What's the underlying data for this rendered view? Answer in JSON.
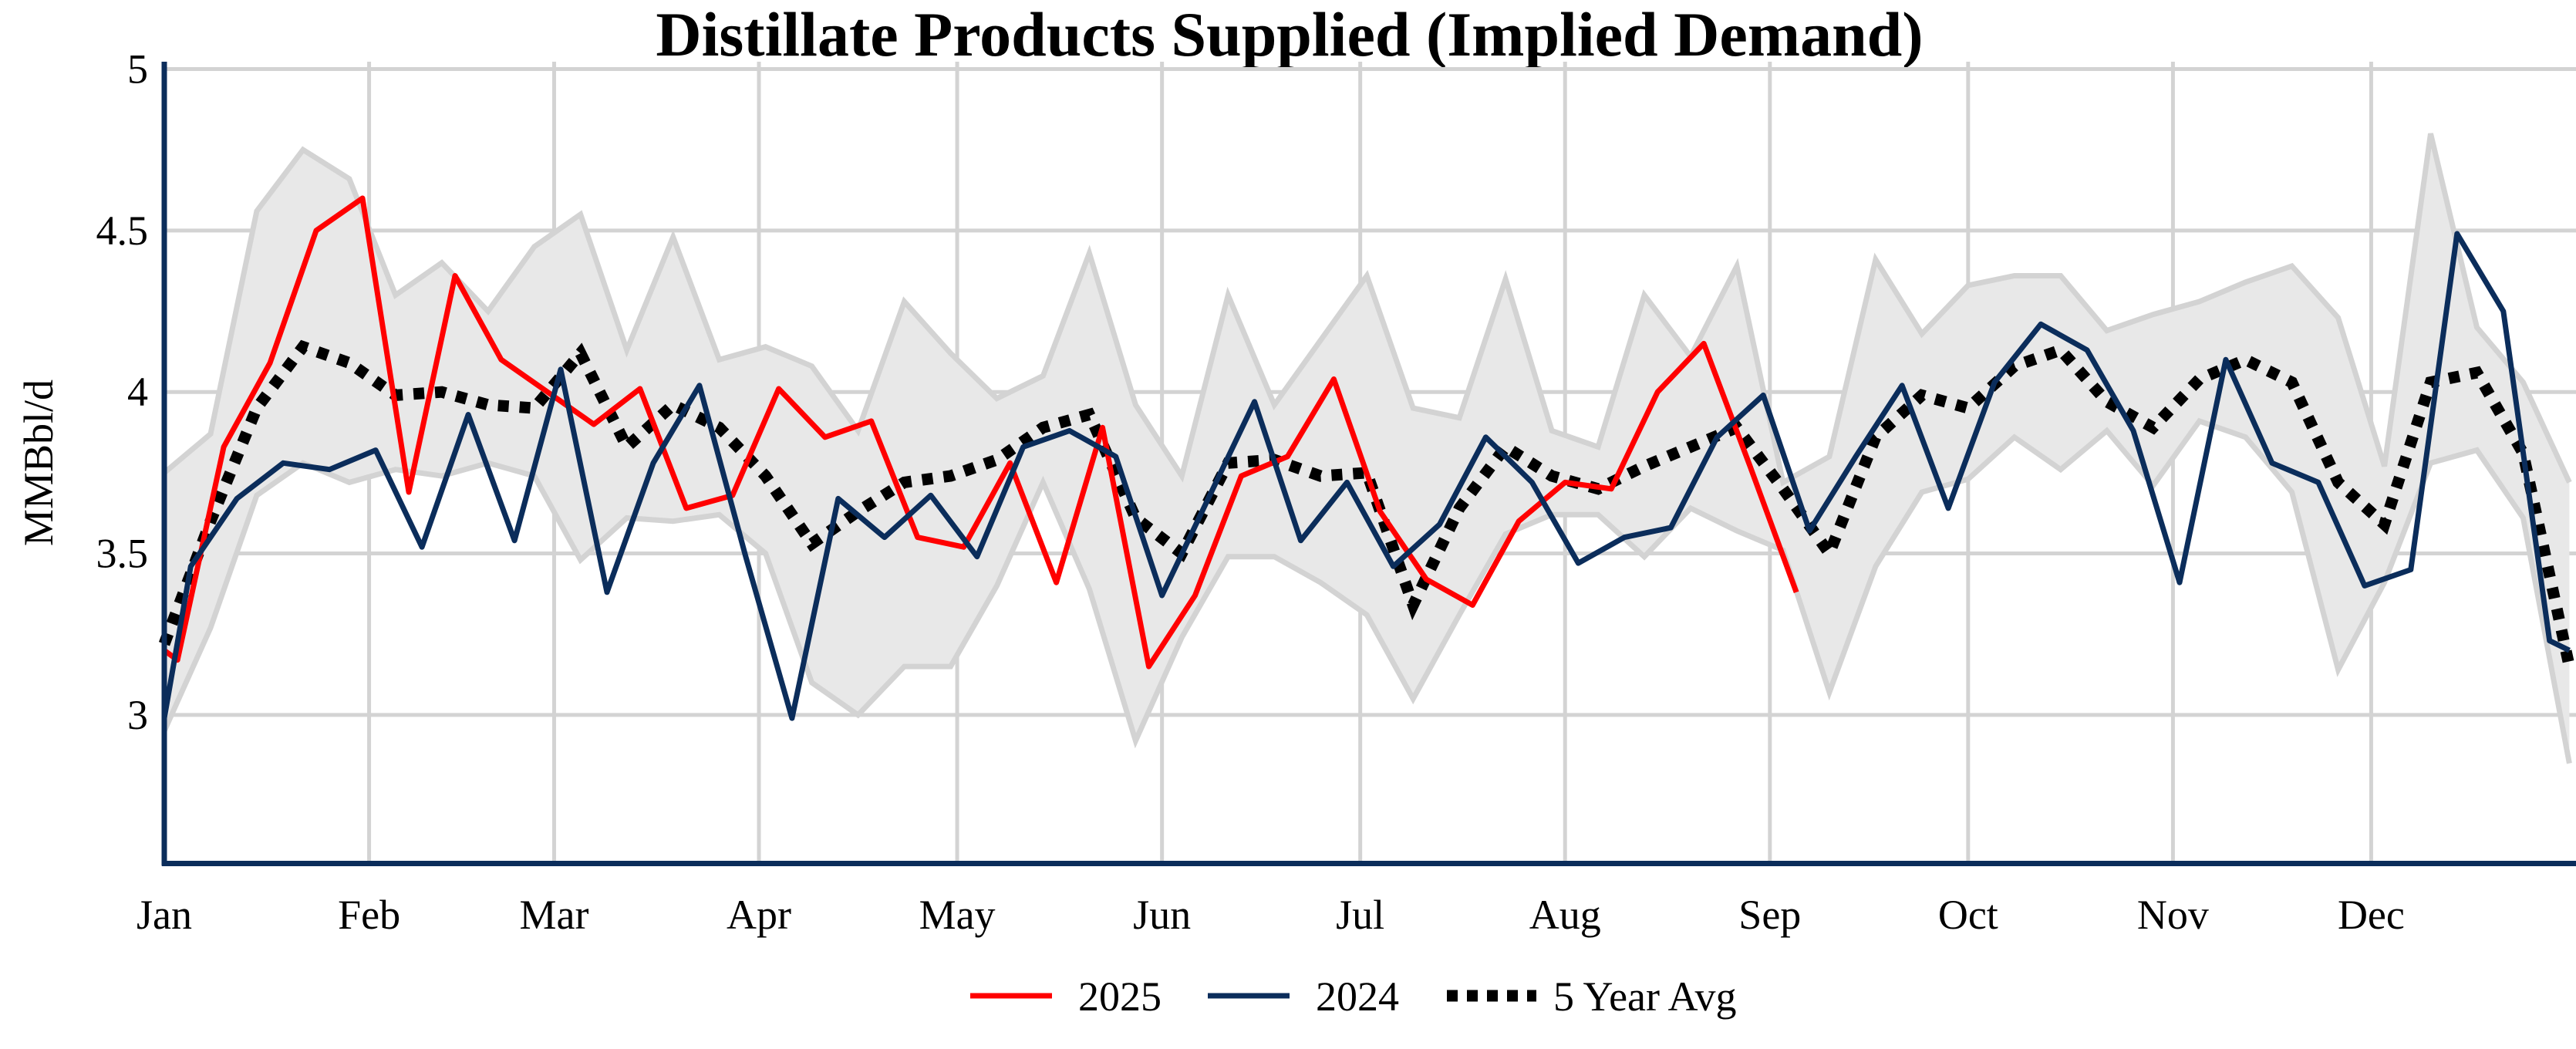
{
  "chart_data": {
    "type": "line",
    "title": "Distillate Products Supplied (Implied Demand)",
    "xlabel": "",
    "ylabel": "MMBbl/d",
    "x_tick_labels": [
      "Jan",
      "Feb",
      "Mar",
      "Apr",
      "May",
      "Jun",
      "Jul",
      "Aug",
      "Sep",
      "Oct",
      "Nov",
      "Dec"
    ],
    "y_tick_labels": [
      "3",
      "3.5",
      "4",
      "4.5",
      "5"
    ],
    "y_ticks": [
      3,
      3.5,
      4,
      4.5,
      5
    ],
    "ylim": [
      2.54,
      5
    ],
    "xlim": [
      "01-01",
      "12-31"
    ],
    "grid": true,
    "legend_position": "bottom",
    "colors": {
      "2025": "#ff0000",
      "2024": "#0b2d5b",
      "avg": "#000000",
      "range_fill": "#e8e8e8",
      "range_edge": "#d3d3d3",
      "axis": "#0b2d5b",
      "grid": "#d3d3d3"
    },
    "range_band": {
      "x": [
        "01-01",
        "01-08",
        "01-15",
        "01-22",
        "01-29",
        "02-05",
        "02-12",
        "02-19",
        "02-26",
        "03-05",
        "03-12",
        "03-19",
        "03-26",
        "04-02",
        "04-09",
        "04-16",
        "04-23",
        "04-30",
        "05-07",
        "05-14",
        "05-21",
        "05-28",
        "06-04",
        "06-11",
        "06-18",
        "06-25",
        "07-02",
        "07-09",
        "07-16",
        "07-23",
        "07-30",
        "08-06",
        "08-13",
        "08-20",
        "08-27",
        "09-03",
        "09-10",
        "09-17",
        "09-24",
        "10-01",
        "10-08",
        "10-15",
        "10-22",
        "10-29",
        "11-05",
        "11-12",
        "11-19",
        "11-26",
        "12-03",
        "12-10",
        "12-17",
        "12-24",
        "12-31"
      ],
      "upper": [
        3.75,
        3.87,
        4.56,
        4.75,
        4.66,
        4.3,
        4.4,
        4.25,
        4.45,
        4.55,
        4.13,
        4.48,
        4.1,
        4.14,
        4.08,
        3.88,
        4.28,
        4.12,
        3.98,
        4.05,
        4.43,
        3.96,
        3.74,
        4.3,
        3.96,
        4.16,
        4.36,
        3.95,
        3.92,
        4.35,
        3.88,
        3.83,
        4.3,
        4.11,
        4.39,
        3.72,
        3.8,
        4.41,
        4.18,
        4.33,
        4.36,
        4.36,
        4.19,
        4.24,
        4.28,
        4.34,
        4.39,
        4.23,
        3.77,
        4.8,
        4.2,
        4.03,
        3.72
      ],
      "lower": [
        2.95,
        3.27,
        3.68,
        3.78,
        3.72,
        3.76,
        3.74,
        3.78,
        3.74,
        3.48,
        3.61,
        3.6,
        3.62,
        3.5,
        3.1,
        3.0,
        3.15,
        3.15,
        3.4,
        3.72,
        3.39,
        2.92,
        3.24,
        3.49,
        3.49,
        3.41,
        3.31,
        3.05,
        3.31,
        3.56,
        3.62,
        3.62,
        3.49,
        3.64,
        3.57,
        3.51,
        3.07,
        3.46,
        3.69,
        3.73,
        3.86,
        3.76,
        3.88,
        3.71,
        3.91,
        3.86,
        3.69,
        3.14,
        3.41,
        3.78,
        3.82,
        3.61,
        2.85
      ]
    },
    "series": [
      {
        "name": "2025",
        "key": "2025",
        "x": [
          "01-01",
          "01-03",
          "01-10",
          "01-17",
          "01-24",
          "01-31",
          "02-07",
          "02-14",
          "02-21",
          "02-28",
          "03-07",
          "03-14",
          "03-21",
          "03-28",
          "04-04",
          "04-11",
          "04-18",
          "04-25",
          "05-02",
          "05-09",
          "05-16",
          "05-23",
          "05-30",
          "06-06",
          "06-13",
          "06-20",
          "06-27",
          "07-04",
          "07-11",
          "07-18",
          "07-25",
          "08-01",
          "08-08",
          "08-15",
          "08-22",
          "08-29",
          "09-05"
        ],
        "values": [
          3.2,
          3.17,
          3.83,
          4.09,
          4.5,
          4.6,
          3.69,
          4.36,
          4.1,
          4.0,
          3.9,
          4.01,
          3.64,
          3.68,
          4.01,
          3.86,
          3.91,
          3.55,
          3.52,
          3.78,
          3.41,
          3.89,
          3.15,
          3.37,
          3.74,
          3.8,
          4.04,
          3.63,
          3.42,
          3.34,
          3.6,
          3.72,
          3.7,
          4.0,
          4.15,
          3.77,
          3.38
        ]
      },
      {
        "name": "2024",
        "key": "2024",
        "x": [
          "01-01",
          "01-05",
          "01-12",
          "01-19",
          "01-26",
          "02-02",
          "02-09",
          "02-16",
          "02-23",
          "03-02",
          "03-09",
          "03-16",
          "03-23",
          "03-30",
          "04-06",
          "04-13",
          "04-20",
          "04-27",
          "05-04",
          "05-11",
          "05-18",
          "05-25",
          "06-01",
          "06-08",
          "06-15",
          "06-22",
          "06-29",
          "07-06",
          "07-13",
          "07-20",
          "07-27",
          "08-03",
          "08-10",
          "08-17",
          "08-24",
          "08-31",
          "09-07",
          "09-14",
          "09-21",
          "09-28",
          "10-05",
          "10-12",
          "10-19",
          "10-26",
          "11-02",
          "11-09",
          "11-16",
          "11-23",
          "11-30",
          "12-07",
          "12-14",
          "12-21",
          "12-28",
          "12-31"
        ],
        "values": [
          2.99,
          3.46,
          3.67,
          3.78,
          3.76,
          3.82,
          3.52,
          3.93,
          3.54,
          4.07,
          3.38,
          3.78,
          4.02,
          3.49,
          2.99,
          3.67,
          3.55,
          3.68,
          3.49,
          3.83,
          3.88,
          3.8,
          3.37,
          3.67,
          3.97,
          3.54,
          3.72,
          3.46,
          3.59,
          3.86,
          3.72,
          3.47,
          3.55,
          3.58,
          3.86,
          3.99,
          3.57,
          3.8,
          4.02,
          3.64,
          4.03,
          4.21,
          4.13,
          3.88,
          3.41,
          4.1,
          3.78,
          3.72,
          3.4,
          3.45,
          4.49,
          4.25,
          3.23,
          3.2
        ]
      },
      {
        "name": "5 Year Avg",
        "key": "avg",
        "x": [
          "01-01",
          "01-08",
          "01-15",
          "01-22",
          "01-29",
          "02-05",
          "02-12",
          "02-19",
          "02-26",
          "03-05",
          "03-12",
          "03-19",
          "03-26",
          "04-02",
          "04-09",
          "04-16",
          "04-23",
          "04-30",
          "05-07",
          "05-14",
          "05-21",
          "05-28",
          "06-04",
          "06-11",
          "06-18",
          "06-25",
          "07-02",
          "07-09",
          "07-16",
          "07-23",
          "07-30",
          "08-06",
          "08-13",
          "08-20",
          "08-27",
          "09-03",
          "09-10",
          "09-17",
          "09-24",
          "10-01",
          "10-08",
          "10-15",
          "10-22",
          "10-29",
          "11-05",
          "11-12",
          "11-19",
          "11-26",
          "12-03",
          "12-10",
          "12-17",
          "12-24",
          "12-31"
        ],
        "values": [
          3.22,
          3.6,
          3.95,
          4.14,
          4.09,
          3.99,
          4.0,
          3.96,
          3.95,
          4.12,
          3.83,
          3.96,
          3.89,
          3.74,
          3.53,
          3.63,
          3.72,
          3.74,
          3.79,
          3.89,
          3.93,
          3.61,
          3.5,
          3.78,
          3.79,
          3.74,
          3.75,
          3.34,
          3.64,
          3.83,
          3.74,
          3.7,
          3.77,
          3.83,
          3.89,
          3.7,
          3.5,
          3.86,
          3.99,
          3.95,
          4.08,
          4.13,
          3.97,
          3.89,
          4.04,
          4.1,
          4.03,
          3.72,
          3.59,
          4.03,
          4.06,
          3.81,
          3.15
        ]
      }
    ]
  }
}
